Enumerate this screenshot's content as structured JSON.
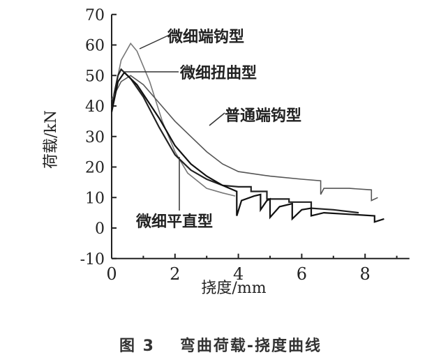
{
  "chart_data": {
    "type": "line",
    "xlabel": "挠度/mm",
    "ylabel": "荷载/kN",
    "xlim": [
      0,
      9.4
    ],
    "ylim": [
      -10,
      70
    ],
    "xticks": [
      0,
      2,
      4,
      6,
      8
    ],
    "yticks": [
      -10,
      0,
      10,
      20,
      30,
      40,
      50,
      60,
      70
    ],
    "grid": false,
    "series": [
      {
        "name": "微细端钩型",
        "color": "#777777",
        "x": [
          0,
          0.1,
          0.3,
          0.6,
          0.8,
          1.2,
          1.6,
          2.0,
          2.4,
          3.0,
          3.5,
          3.9
        ],
        "y": [
          38,
          45,
          55,
          60.5,
          58,
          48,
          35,
          25,
          18,
          13,
          11.5,
          10.5
        ]
      },
      {
        "name": "微细扭曲型",
        "color": "#222222",
        "x": [
          0,
          0.2,
          0.3,
          0.6,
          1.0,
          1.5,
          2.0,
          2.5,
          3.0,
          3.5,
          4.0,
          4.4,
          4.4,
          4.9,
          4.9,
          5.6,
          5.6,
          6.3,
          6.3,
          7.0,
          7.8
        ],
        "y": [
          40,
          50,
          52,
          49,
          43,
          33,
          24,
          19,
          16,
          14,
          13.5,
          13.5,
          12,
          12,
          9.5,
          9.5,
          8.5,
          8.5,
          6.5,
          6,
          5
        ]
      },
      {
        "name": "普通端钩型",
        "color": "#555555",
        "x": [
          0,
          0.3,
          0.6,
          1.0,
          1.5,
          2.0,
          2.5,
          3.0,
          3.5,
          4.0,
          5.0,
          6.0,
          6.6,
          6.6,
          6.7,
          7.5,
          8.2,
          8.2,
          8.4
        ],
        "y": [
          42,
          48,
          50,
          47,
          41,
          35,
          30,
          25,
          21,
          18.5,
          17,
          16,
          15.5,
          11,
          13,
          13,
          12.5,
          9,
          10
        ]
      },
      {
        "name": "微细平直型",
        "color": "#111111",
        "x": [
          0,
          0.2,
          0.4,
          0.8,
          1.5,
          2.0,
          2.5,
          3.0,
          3.5,
          3.95,
          3.95,
          4.1,
          4.5,
          4.7,
          4.7,
          4.9,
          5.0,
          5.0,
          5.3,
          5.7,
          5.7,
          6.0,
          6.3,
          6.3,
          6.7,
          7.5,
          8.3,
          8.3,
          8.6
        ],
        "y": [
          38,
          48,
          51,
          47,
          36,
          27,
          21,
          17,
          14,
          12,
          4,
          9,
          10.5,
          11,
          6,
          9,
          9.5,
          3.5,
          7,
          8,
          3,
          6,
          6.5,
          4,
          5,
          4.5,
          4,
          2,
          3
        ]
      }
    ]
  },
  "caption": {
    "figure": "图 3",
    "title": "弯曲荷载-挠度曲线"
  }
}
